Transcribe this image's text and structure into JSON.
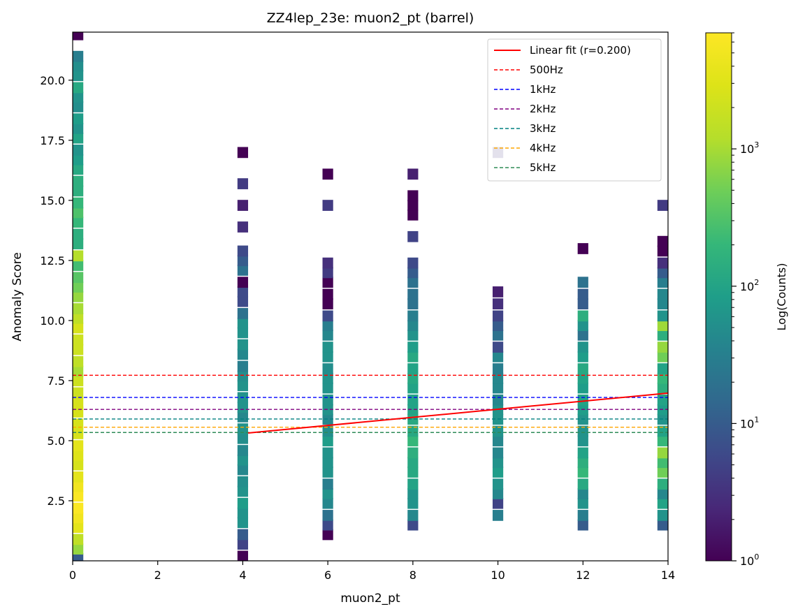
{
  "chart_data": {
    "type": "heatmap",
    "title": "ZZ4lep_23e: muon2_pt (barrel)",
    "xlabel": "muon2_pt",
    "ylabel": "Anomaly Score",
    "xlim": [
      0,
      14
    ],
    "ylim": [
      0,
      22
    ],
    "xticks": [
      "0",
      "2",
      "4",
      "6",
      "8",
      "10",
      "12",
      "14"
    ],
    "yticks": [
      "2.5",
      "5.0",
      "7.5",
      "10.0",
      "12.5",
      "15.0",
      "17.5",
      "20.0"
    ],
    "colorbar": {
      "label": "Log(Counts)",
      "scale": "log",
      "min": 1,
      "max": 7000,
      "colormap": "viridis",
      "major_ticks": [
        {
          "base": "10",
          "exp": "0"
        },
        {
          "base": "10",
          "exp": "1"
        },
        {
          "base": "10",
          "exp": "2"
        },
        {
          "base": "10",
          "exp": "3"
        }
      ]
    },
    "bin_height": 0.44,
    "columns": [
      {
        "x": 0.125,
        "cells": [
          [
            0.1,
            10
          ],
          [
            0.5,
            800
          ],
          [
            0.9,
            1500
          ],
          [
            1.4,
            3500
          ],
          [
            1.8,
            5000
          ],
          [
            2.2,
            6500
          ],
          [
            2.7,
            6500
          ],
          [
            3.1,
            5000
          ],
          [
            3.5,
            3500
          ],
          [
            4.0,
            2500
          ],
          [
            4.4,
            3000
          ],
          [
            4.8,
            3500
          ],
          [
            5.3,
            2500
          ],
          [
            5.7,
            2500
          ],
          [
            6.2,
            2500
          ],
          [
            6.6,
            2500
          ],
          [
            7.0,
            2000
          ],
          [
            7.5,
            2000
          ],
          [
            7.9,
            1000
          ],
          [
            8.3,
            1500
          ],
          [
            8.8,
            2000
          ],
          [
            9.2,
            2000
          ],
          [
            9.7,
            2500
          ],
          [
            10.1,
            1500
          ],
          [
            10.5,
            1000
          ],
          [
            11.0,
            800
          ],
          [
            11.4,
            500
          ],
          [
            11.8,
            350
          ],
          [
            12.3,
            250
          ],
          [
            12.7,
            1200
          ],
          [
            13.2,
            150
          ],
          [
            13.6,
            150
          ],
          [
            14.1,
            200
          ],
          [
            14.5,
            300
          ],
          [
            14.9,
            200
          ],
          [
            15.4,
            150
          ],
          [
            15.8,
            150
          ],
          [
            16.3,
            120
          ],
          [
            16.7,
            80
          ],
          [
            17.1,
            60
          ],
          [
            17.6,
            100
          ],
          [
            18.0,
            60
          ],
          [
            18.4,
            80
          ],
          [
            18.9,
            50
          ],
          [
            19.3,
            60
          ],
          [
            19.7,
            120
          ],
          [
            20.2,
            60
          ],
          [
            20.6,
            50
          ],
          [
            21.0,
            30
          ],
          [
            21.9,
            1
          ]
        ]
      },
      {
        "x": 4.0,
        "cells": [
          [
            0.2,
            1
          ],
          [
            0.7,
            5
          ],
          [
            1.1,
            10
          ],
          [
            1.6,
            60
          ],
          [
            2.0,
            60
          ],
          [
            2.4,
            80
          ],
          [
            2.9,
            60
          ],
          [
            3.3,
            50
          ],
          [
            3.8,
            40
          ],
          [
            4.2,
            60
          ],
          [
            4.6,
            40
          ],
          [
            5.1,
            50
          ],
          [
            5.5,
            60
          ],
          [
            6.0,
            40
          ],
          [
            6.4,
            60
          ],
          [
            6.8,
            60
          ],
          [
            7.3,
            60
          ],
          [
            7.7,
            50
          ],
          [
            8.1,
            30
          ],
          [
            8.6,
            40
          ],
          [
            9.0,
            60
          ],
          [
            9.5,
            60
          ],
          [
            9.9,
            60
          ],
          [
            10.3,
            20
          ],
          [
            10.8,
            6
          ],
          [
            11.2,
            6
          ],
          [
            11.6,
            1
          ],
          [
            12.1,
            20
          ],
          [
            12.5,
            10
          ],
          [
            12.9,
            6
          ],
          [
            13.9,
            3
          ],
          [
            14.8,
            2
          ],
          [
            15.7,
            4
          ],
          [
            17.0,
            1
          ]
        ]
      },
      {
        "x": 6.0,
        "cells": [
          [
            1.1,
            1
          ],
          [
            1.5,
            6
          ],
          [
            1.9,
            20
          ],
          [
            2.4,
            40
          ],
          [
            2.8,
            60
          ],
          [
            3.2,
            30
          ],
          [
            3.7,
            60
          ],
          [
            4.1,
            60
          ],
          [
            4.5,
            60
          ],
          [
            5.0,
            80
          ],
          [
            5.4,
            50
          ],
          [
            5.9,
            40
          ],
          [
            6.3,
            60
          ],
          [
            6.7,
            60
          ],
          [
            7.2,
            60
          ],
          [
            7.6,
            60
          ],
          [
            8.0,
            50
          ],
          [
            8.5,
            60
          ],
          [
            8.9,
            60
          ],
          [
            9.4,
            40
          ],
          [
            9.8,
            30
          ],
          [
            10.2,
            6
          ],
          [
            10.7,
            1
          ],
          [
            11.1,
            1
          ],
          [
            11.6,
            1
          ],
          [
            12.0,
            4
          ],
          [
            12.4,
            3
          ],
          [
            14.8,
            4
          ],
          [
            16.1,
            1
          ]
        ]
      },
      {
        "x": 8.0,
        "cells": [
          [
            1.5,
            6
          ],
          [
            1.9,
            40
          ],
          [
            2.4,
            60
          ],
          [
            2.8,
            60
          ],
          [
            3.2,
            100
          ],
          [
            3.7,
            120
          ],
          [
            4.1,
            120
          ],
          [
            4.5,
            150
          ],
          [
            5.0,
            200
          ],
          [
            5.4,
            120
          ],
          [
            5.9,
            120
          ],
          [
            6.3,
            100
          ],
          [
            6.7,
            100
          ],
          [
            7.2,
            100
          ],
          [
            7.6,
            120
          ],
          [
            8.0,
            100
          ],
          [
            8.5,
            120
          ],
          [
            8.9,
            80
          ],
          [
            9.4,
            60
          ],
          [
            9.8,
            40
          ],
          [
            10.2,
            30
          ],
          [
            10.7,
            20
          ],
          [
            11.1,
            20
          ],
          [
            11.6,
            20
          ],
          [
            12.0,
            10
          ],
          [
            12.4,
            6
          ],
          [
            13.5,
            5
          ],
          [
            14.4,
            1
          ],
          [
            14.8,
            1
          ],
          [
            15.2,
            1
          ],
          [
            16.1,
            2
          ]
        ]
      },
      {
        "x": 10.0,
        "cells": [
          [
            1.9,
            30
          ],
          [
            2.4,
            5
          ],
          [
            2.8,
            40
          ],
          [
            3.2,
            60
          ],
          [
            3.7,
            80
          ],
          [
            4.1,
            60
          ],
          [
            4.5,
            40
          ],
          [
            5.0,
            40
          ],
          [
            5.4,
            60
          ],
          [
            5.9,
            60
          ],
          [
            6.3,
            60
          ],
          [
            6.7,
            40
          ],
          [
            7.2,
            40
          ],
          [
            7.6,
            40
          ],
          [
            8.0,
            30
          ],
          [
            8.5,
            40
          ],
          [
            8.9,
            6
          ],
          [
            9.4,
            20
          ],
          [
            9.8,
            10
          ],
          [
            10.2,
            5
          ],
          [
            10.7,
            3
          ],
          [
            11.2,
            2
          ],
          [
            17.0,
            4
          ]
        ]
      },
      {
        "x": 12.0,
        "cells": [
          [
            1.5,
            10
          ],
          [
            1.9,
            30
          ],
          [
            2.4,
            60
          ],
          [
            2.8,
            40
          ],
          [
            3.2,
            120
          ],
          [
            3.7,
            200
          ],
          [
            4.1,
            150
          ],
          [
            4.5,
            100
          ],
          [
            5.0,
            60
          ],
          [
            5.4,
            60
          ],
          [
            5.9,
            60
          ],
          [
            6.3,
            80
          ],
          [
            6.7,
            100
          ],
          [
            7.2,
            80
          ],
          [
            7.6,
            100
          ],
          [
            8.0,
            120
          ],
          [
            8.5,
            80
          ],
          [
            8.9,
            60
          ],
          [
            9.4,
            20
          ],
          [
            9.8,
            60
          ],
          [
            10.2,
            150
          ],
          [
            10.7,
            10
          ],
          [
            11.1,
            10
          ],
          [
            11.6,
            20
          ],
          [
            13.0,
            1
          ]
        ]
      },
      {
        "x": 13.875,
        "cells": [
          [
            1.5,
            10
          ],
          [
            1.9,
            60
          ],
          [
            2.4,
            100
          ],
          [
            2.8,
            40
          ],
          [
            3.2,
            150
          ],
          [
            3.7,
            500
          ],
          [
            4.1,
            250
          ],
          [
            4.5,
            800
          ],
          [
            5.0,
            200
          ],
          [
            5.4,
            100
          ],
          [
            5.9,
            60
          ],
          [
            6.3,
            80
          ],
          [
            6.7,
            100
          ],
          [
            7.2,
            150
          ],
          [
            7.6,
            200
          ],
          [
            8.0,
            100
          ],
          [
            8.5,
            500
          ],
          [
            8.9,
            800
          ],
          [
            9.4,
            150
          ],
          [
            9.8,
            900
          ],
          [
            10.2,
            60
          ],
          [
            10.7,
            40
          ],
          [
            11.1,
            40
          ],
          [
            11.6,
            30
          ],
          [
            12.0,
            10
          ],
          [
            12.4,
            3
          ],
          [
            12.9,
            1
          ],
          [
            13.3,
            1
          ],
          [
            14.8,
            4
          ]
        ]
      }
    ],
    "fit_line": {
      "label": "Linear fit (r=0.200)",
      "color": "#ff0000",
      "x": [
        4.125,
        14.0
      ],
      "y": [
        5.32,
        6.98
      ]
    },
    "hlines": [
      {
        "label": "500Hz",
        "y": 7.72,
        "color": "#ff0000"
      },
      {
        "label": "1kHz",
        "y": 6.8,
        "color": "#0000ff"
      },
      {
        "label": "2kHz",
        "y": 6.3,
        "color": "#800080"
      },
      {
        "label": "3kHz",
        "y": 5.9,
        "color": "#008080"
      },
      {
        "label": "4kHz",
        "y": 5.56,
        "color": "#ffa500"
      },
      {
        "label": "5kHz",
        "y": 5.34,
        "color": "#2e8b57"
      }
    ],
    "legend_position": "top-right",
    "grid": false
  }
}
